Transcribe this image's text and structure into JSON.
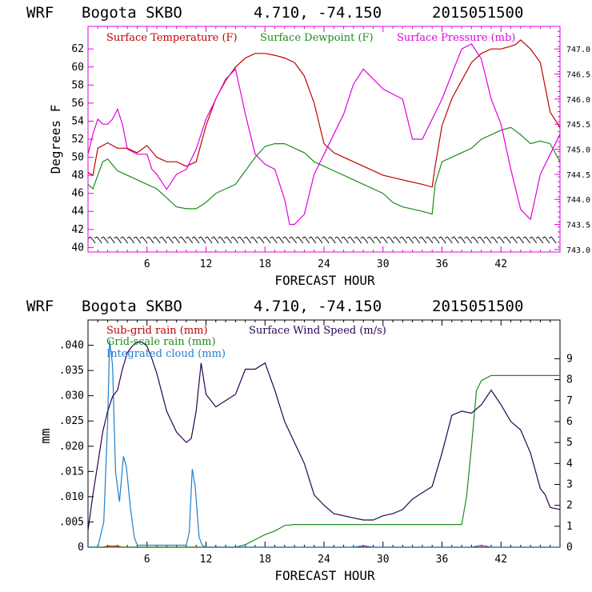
{
  "chart_data": [
    {
      "type": "line",
      "header": {
        "model": "WRF",
        "station": "Bogota SKBO",
        "coords": "4.710, -74.150",
        "init": "2015051500"
      },
      "xlabel": "FORECAST HOUR",
      "ylabel": "Degrees F",
      "xlim": [
        0,
        48
      ],
      "ylim": [
        39.5,
        64.5
      ],
      "y2lim": [
        742.95,
        747.45
      ],
      "xticks": [
        "6",
        "12",
        "18",
        "24",
        "30",
        "36",
        "42"
      ],
      "yticks": [
        "40",
        "42",
        "44",
        "46",
        "48",
        "50",
        "52",
        "54",
        "56",
        "58",
        "60",
        "62"
      ],
      "y2ticks": [
        "743.0",
        "743.5",
        "744.0",
        "744.5",
        "745.0",
        "745.5",
        "746.0",
        "746.5",
        "747.0"
      ],
      "colors": {
        "temp": "#c00000",
        "dewpoint": "#1e8c1e",
        "pressure": "#e000e0",
        "axes": "#e000e0"
      },
      "wind_barbs": "row of wind barbs along the bottom of the panel",
      "series": [
        {
          "name": "Surface Temperature (F)",
          "color": "#c00000",
          "axis": "left",
          "x": [
            0,
            0.5,
            1,
            1.5,
            2,
            2.5,
            3,
            4,
            5,
            6,
            7,
            8,
            9,
            10,
            11,
            12,
            13,
            14,
            15,
            16,
            17,
            18,
            19,
            20,
            21,
            22,
            23,
            24,
            25,
            26,
            28,
            30,
            32,
            34,
            35,
            35.3,
            36,
            37,
            38,
            39,
            40,
            41,
            42,
            43,
            43.5,
            44,
            45,
            46,
            47,
            48
          ],
          "values": [
            48.3,
            48.0,
            51.0,
            51.3,
            51.6,
            51.3,
            51.0,
            51.0,
            50.5,
            51.3,
            50.0,
            49.5,
            49.5,
            49.0,
            49.5,
            53.5,
            56.5,
            58.5,
            60.0,
            61.0,
            61.5,
            61.5,
            61.3,
            61.0,
            60.5,
            59.0,
            56.0,
            51.5,
            50.5,
            50.0,
            49.0,
            48.0,
            47.5,
            47.0,
            46.7,
            49.0,
            53.5,
            56.5,
            58.5,
            60.5,
            61.5,
            62.0,
            62.0,
            62.3,
            62.5,
            63.0,
            62.0,
            60.5,
            55.0,
            53.3
          ]
        },
        {
          "name": "Surface Dewpoint (F)",
          "color": "#1e8c1e",
          "axis": "left",
          "x": [
            0,
            0.5,
            1,
            1.5,
            2,
            3,
            4,
            5,
            6,
            7,
            8,
            9,
            10,
            11,
            12,
            13,
            14,
            15,
            16,
            17,
            18,
            19,
            20,
            21,
            22,
            23,
            24,
            25,
            26,
            28,
            30,
            31,
            32,
            34,
            35,
            35.3,
            36,
            37,
            38,
            39,
            40,
            41,
            42,
            43,
            44,
            45,
            46,
            47,
            48
          ],
          "values": [
            47.0,
            46.5,
            48.0,
            49.5,
            49.8,
            48.5,
            48.0,
            47.5,
            47.0,
            46.5,
            45.5,
            44.5,
            44.3,
            44.3,
            45.0,
            46.0,
            46.5,
            47.0,
            48.5,
            50.0,
            51.2,
            51.5,
            51.5,
            51.0,
            50.5,
            49.5,
            49.0,
            48.5,
            48.0,
            47.0,
            46.0,
            45.0,
            44.5,
            44.0,
            43.7,
            47.0,
            49.5,
            50.0,
            50.5,
            51.0,
            52.0,
            52.5,
            53.0,
            53.3,
            52.5,
            51.5,
            51.8,
            51.5,
            49.5
          ]
        },
        {
          "name": "Surface Pressure (mb)",
          "color": "#e000e0",
          "axis": "right",
          "x": [
            0,
            0.5,
            1,
            1.5,
            2,
            2.5,
            3,
            3.5,
            4,
            5,
            6,
            6.5,
            7,
            8,
            9,
            10,
            11,
            12,
            13,
            14,
            15,
            16,
            17,
            18,
            19,
            20,
            20.5,
            21,
            22,
            23,
            24,
            25,
            26,
            27,
            28,
            29,
            30,
            31,
            32,
            33,
            34,
            35,
            36,
            37,
            38,
            39,
            40,
            41,
            42,
            43,
            44,
            45,
            46,
            47,
            48
          ],
          "values": [
            744.9,
            745.3,
            745.6,
            745.5,
            745.5,
            745.6,
            745.8,
            745.5,
            745.0,
            744.9,
            744.9,
            744.6,
            744.5,
            744.2,
            744.5,
            744.6,
            745.0,
            745.6,
            746.0,
            746.4,
            746.6,
            745.7,
            744.9,
            744.7,
            744.6,
            744.0,
            743.5,
            743.5,
            743.7,
            744.5,
            744.9,
            745.3,
            745.7,
            746.3,
            746.6,
            746.4,
            746.2,
            746.1,
            746.0,
            745.2,
            745.2,
            745.6,
            746.0,
            746.5,
            747.0,
            747.1,
            746.8,
            746.0,
            745.5,
            744.6,
            743.8,
            743.6,
            744.5,
            744.9,
            745.3
          ]
        }
      ]
    },
    {
      "type": "line",
      "header": {
        "model": "WRF",
        "station": "Bogota SKBO",
        "coords": "4.710, -74.150",
        "init": "2015051500"
      },
      "xlabel": "FORECAST HOUR",
      "ylabel": "mm",
      "xlim": [
        0,
        48
      ],
      "ylim": [
        0,
        0.045
      ],
      "y2lim": [
        0,
        10.85
      ],
      "xticks": [
        "6",
        "12",
        "18",
        "24",
        "30",
        "36",
        "42"
      ],
      "yticks": [
        "0",
        ".005",
        ".010",
        ".015",
        ".020",
        ".025",
        ".030",
        ".035",
        ".040"
      ],
      "y2ticks": [
        "0",
        "1",
        "2",
        "3",
        "4",
        "5",
        "6",
        "7",
        "8",
        "9"
      ],
      "colors": {
        "subgrid": "#c00000",
        "gridscale": "#1e8c1e",
        "cloud": "#1e7fd0",
        "wind": "#2a0050",
        "axes": "#000000"
      },
      "series": [
        {
          "name": "Sub-grid rain (mm)",
          "color": "#c00000",
          "axis": "left",
          "x": [
            0,
            1.5,
            2,
            3,
            3.5,
            48
          ],
          "values": [
            0,
            0,
            0.0002,
            0.0002,
            0,
            0
          ]
        },
        {
          "name": "Grid-scale rain (mm)",
          "color": "#1e8c1e",
          "axis": "left",
          "x": [
            0,
            15,
            16,
            17,
            18,
            19,
            20,
            21,
            24,
            30,
            36,
            38,
            38.5,
            39,
            39.5,
            40,
            41,
            42,
            48
          ],
          "values": [
            0,
            0,
            0.0005,
            0.0015,
            0.0025,
            0.0032,
            0.0043,
            0.0045,
            0.0045,
            0.0045,
            0.0045,
            0.0045,
            0.01,
            0.02,
            0.031,
            0.033,
            0.034,
            0.034,
            0.034
          ]
        },
        {
          "name": "Integrated cloud (mm)",
          "color": "#1e7fd0",
          "axis": "left",
          "x": [
            0,
            1,
            1.6,
            2,
            2.2,
            2.5,
            2.8,
            3.2,
            3.6,
            3.9,
            4.3,
            4.7,
            5,
            6,
            10,
            10.3,
            10.6,
            10.9,
            11.3,
            11.6,
            12,
            20,
            27,
            28,
            29,
            36,
            39,
            40,
            41,
            48
          ],
          "values": [
            0,
            0,
            0.005,
            0.025,
            0.041,
            0.036,
            0.015,
            0.009,
            0.018,
            0.016,
            0.008,
            0.002,
            0.0004,
            0.0004,
            0.0004,
            0.003,
            0.0155,
            0.012,
            0.002,
            0.0004,
            0,
            0,
            0,
            0.0003,
            0,
            0,
            0,
            0.0004,
            0,
            0
          ]
        },
        {
          "name": "Surface Wind Speed (m/s)",
          "color": "#2a0050",
          "axis": "right",
          "x": [
            0,
            0.5,
            1,
            1.5,
            2,
            2.5,
            3,
            3.5,
            4,
            4.5,
            5,
            5.5,
            6,
            6.5,
            7,
            8,
            9,
            10,
            10.5,
            11,
            11.5,
            12,
            13,
            14,
            15,
            16,
            17,
            18,
            19,
            20,
            21,
            22,
            23,
            24,
            25,
            26,
            27,
            28,
            29,
            30,
            31,
            32,
            33,
            34,
            35,
            36,
            37,
            38,
            39,
            40,
            41,
            42,
            43,
            44,
            45,
            46,
            46.5,
            47,
            48
          ],
          "values": [
            0.8,
            2.5,
            4.0,
            5.5,
            6.5,
            7.2,
            7.5,
            8.5,
            9.3,
            9.6,
            9.8,
            9.8,
            9.6,
            9.0,
            8.3,
            6.5,
            5.5,
            5.0,
            5.2,
            6.5,
            8.8,
            7.3,
            6.7,
            7.0,
            7.3,
            8.5,
            8.5,
            8.8,
            7.5,
            6.0,
            5.0,
            4.0,
            2.5,
            2.0,
            1.6,
            1.5,
            1.4,
            1.3,
            1.3,
            1.5,
            1.6,
            1.8,
            2.3,
            2.6,
            2.9,
            4.5,
            6.3,
            6.5,
            6.4,
            6.8,
            7.5,
            6.8,
            6.0,
            5.6,
            4.5,
            2.8,
            2.5,
            1.9,
            1.8
          ]
        }
      ]
    }
  ]
}
